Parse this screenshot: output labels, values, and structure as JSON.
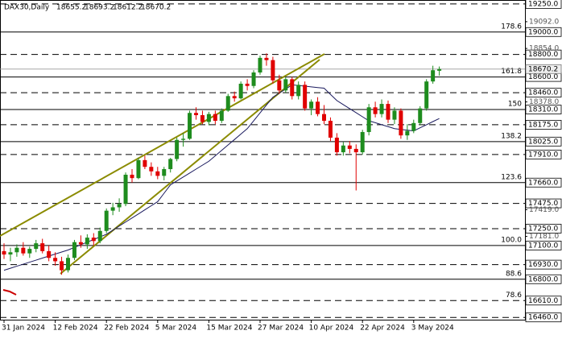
{
  "chart_data": {
    "type": "candlestick",
    "title": "DAX30,Daily",
    "categories": [
      "31 Jan 2024",
      null,
      null,
      null,
      null,
      null,
      null,
      null,
      "12 Feb 2024",
      null,
      null,
      null,
      null,
      null,
      null,
      null,
      "22 Feb 2024",
      null,
      null,
      null,
      null,
      null,
      null,
      null,
      "5 Mar 2024",
      null,
      null,
      null,
      null,
      null,
      null,
      null,
      "15 Mar 2024",
      null,
      null,
      null,
      null,
      null,
      null,
      null,
      "27 Mar 2024",
      null,
      null,
      null,
      null,
      null,
      null,
      null,
      "10 Apr 2024",
      null,
      null,
      null,
      null,
      null,
      null,
      null,
      "22 Apr 2024",
      null,
      null,
      null,
      null,
      null,
      null,
      null,
      "3 May 2024",
      null,
      null,
      null,
      null
    ],
    "open": [
      17050,
      17020,
      17040,
      17080,
      17030,
      17070,
      17120,
      17050,
      16990,
      16960,
      16880,
      16990,
      17130,
      17110,
      17170,
      17140,
      17230,
      17410,
      17440,
      17470,
      17730,
      17700,
      17860,
      17800,
      17760,
      17720,
      17780,
      17870,
      18040,
      18050,
      18280,
      18260,
      18200,
      18270,
      18210,
      18300,
      18430,
      18410,
      18540,
      18520,
      18640,
      18770,
      18750,
      18570,
      18480,
      18580,
      18430,
      18530,
      18320,
      18380,
      18270,
      18210,
      18060,
      17930,
      17990,
      17960,
      17930,
      18110,
      18330,
      18270,
      18360,
      18220,
      18300,
      18080,
      18120,
      18190,
      18320,
      18560,
      18655.2
    ],
    "high": [
      17120,
      17080,
      17110,
      17130,
      17090,
      17150,
      17160,
      17100,
      17040,
      17000,
      17020,
      17150,
      17190,
      17200,
      17210,
      17260,
      17430,
      17480,
      17520,
      17750,
      17780,
      17880,
      17900,
      17840,
      17800,
      17800,
      17880,
      18060,
      18100,
      18300,
      18330,
      18300,
      18290,
      18300,
      18320,
      18450,
      18470,
      18560,
      18580,
      18660,
      18790,
      18810,
      18780,
      18620,
      18600,
      18600,
      18560,
      18560,
      18400,
      18420,
      18350,
      18240,
      18100,
      18020,
      18030,
      18000,
      18130,
      18360,
      18380,
      18400,
      18390,
      18330,
      18320,
      18180,
      18220,
      18340,
      18580,
      18700,
      18693.2
    ],
    "low": [
      16980,
      16960,
      17000,
      17010,
      16990,
      17040,
      17030,
      16960,
      16920,
      16840,
      16860,
      16970,
      17080,
      17070,
      17100,
      17120,
      17210,
      17370,
      17400,
      17450,
      17660,
      17690,
      17780,
      17720,
      17690,
      17680,
      17750,
      17850,
      17980,
      18040,
      18220,
      18180,
      18170,
      18180,
      18190,
      18290,
      18380,
      18400,
      18480,
      18500,
      18620,
      18700,
      18540,
      18450,
      18460,
      18400,
      18400,
      18300,
      18260,
      18250,
      18180,
      18030,
      17900,
      17900,
      17920,
      17590,
      17910,
      18080,
      18240,
      18240,
      18190,
      18180,
      18050,
      18040,
      18100,
      18170,
      18300,
      18540,
      18612.2
    ],
    "close": [
      17020,
      17040,
      17080,
      17030,
      17070,
      17120,
      17050,
      16990,
      16960,
      16880,
      16990,
      17130,
      17110,
      17170,
      17140,
      17230,
      17410,
      17440,
      17470,
      17730,
      17700,
      17860,
      17800,
      17760,
      17720,
      17780,
      17870,
      18040,
      18050,
      18280,
      18260,
      18200,
      18270,
      18210,
      18300,
      18430,
      18410,
      18540,
      18520,
      18640,
      18770,
      18750,
      18570,
      18480,
      18580,
      18430,
      18530,
      18320,
      18380,
      18270,
      18210,
      18060,
      17930,
      17990,
      17960,
      17930,
      18110,
      18330,
      18270,
      18360,
      18220,
      18300,
      18080,
      18120,
      18190,
      18320,
      18560,
      18660,
      18670.2
    ],
    "up_color": "#1e8c1e",
    "down_color": "#e00000",
    "ma": [
      16880,
      16898,
      16916,
      16934,
      16952,
      16970,
      16988,
      17006,
      17024,
      17042,
      17060,
      17083,
      17107,
      17130,
      17153,
      17177,
      17200,
      17236,
      17273,
      17309,
      17345,
      17381,
      17418,
      17454,
      17490,
      17565,
      17640,
      17675,
      17710,
      17745,
      17780,
      17815,
      17850,
      17898,
      17947,
      17995,
      18043,
      18092,
      18140,
      18210,
      18280,
      18350,
      18420,
      18457,
      18493,
      18530,
      18524,
      18518,
      18512,
      18506,
      18500,
      18445,
      18390,
      18354,
      18318,
      18282,
      18246,
      18210,
      18193,
      18175,
      18158,
      18140,
      18133,
      18127,
      18120,
      18148,
      18175,
      18203,
      18230
    ],
    "ma_color": "#1a1a5e",
    "ylim": [
      16440,
      19285
    ],
    "yticks": [
      {
        "value": 19092,
        "label": "19092.0"
      },
      {
        "value": 18854,
        "label": "18854.0"
      },
      {
        "value": 18378,
        "label": "18378.0"
      },
      {
        "value": 17419,
        "label": "17419.0"
      },
      {
        "value": 17181,
        "label": "17181.0"
      }
    ],
    "levels": [
      {
        "value": 19250,
        "label": "19250.0",
        "style": "dashed"
      },
      {
        "value": 19000,
        "label": "19000.0",
        "style": "solid",
        "fib": "178.6"
      },
      {
        "value": 18800,
        "label": "18800.0",
        "style": "dashed"
      },
      {
        "value": 18600,
        "label": "18600.0",
        "style": "solid",
        "fib": "161.8"
      },
      {
        "value": 18460,
        "label": "18460.0",
        "style": "dashed"
      },
      {
        "value": 18310,
        "label": "18310.0",
        "style": "solid",
        "fib": "150"
      },
      {
        "value": 18175,
        "label": "18175.0",
        "style": "dashed"
      },
      {
        "value": 18025,
        "label": "18025.0",
        "style": "solid",
        "fib": "138.2"
      },
      {
        "value": 17910,
        "label": "17910.0",
        "style": "dashed"
      },
      {
        "value": 17660,
        "label": "17660.0",
        "style": "solid",
        "fib": "123.6"
      },
      {
        "value": 17475,
        "label": "17475.0",
        "style": "dashed"
      },
      {
        "value": 17250,
        "label": "17250.0",
        "style": "dashed"
      },
      {
        "value": 17100,
        "label": "17100.0",
        "style": "solid",
        "fib": "100.0"
      },
      {
        "value": 16930,
        "label": "16930.0",
        "style": "dashed"
      },
      {
        "value": 16800,
        "label": "16800.0",
        "style": "solid",
        "fib": "88.6"
      },
      {
        "value": 16610,
        "label": "16610.0",
        "style": "dashed",
        "fib": "78.6"
      },
      {
        "value": 16460,
        "label": "16460.0",
        "style": "dashed"
      }
    ]
  }
}
